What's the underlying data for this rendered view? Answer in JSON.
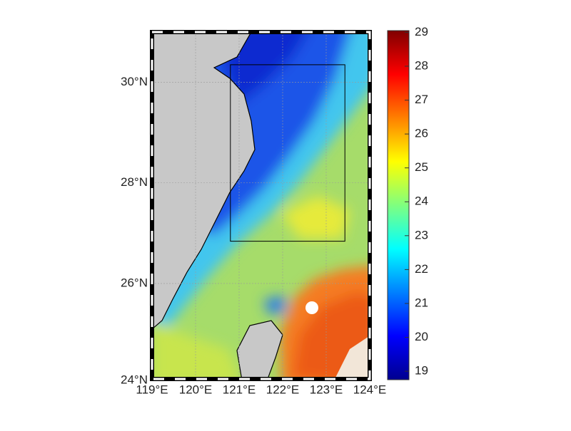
{
  "map": {
    "lonlim": [
      119,
      124
    ],
    "latlim": [
      24.1,
      31
    ],
    "lon_ticks": [
      {
        "value": 119,
        "label": "119°E"
      },
      {
        "value": 120,
        "label": "120°E"
      },
      {
        "value": 121,
        "label": "121°E"
      },
      {
        "value": 122,
        "label": "122°E"
      },
      {
        "value": 123,
        "label": "123°E"
      },
      {
        "value": 124,
        "label": "124°E"
      }
    ],
    "lat_ticks": [
      {
        "value": 24,
        "label": "24°N"
      },
      {
        "value": 26,
        "label": "26°N"
      },
      {
        "value": 28,
        "label": "28°N"
      },
      {
        "value": 30,
        "label": "30°N"
      }
    ],
    "box": {
      "lon": [
        120.8,
        123.43
      ],
      "lat": [
        26.84,
        30.35
      ]
    },
    "colorbar": {
      "lim": [
        18.75,
        29.05
      ],
      "ticks": [
        19,
        20,
        21,
        22,
        23,
        24,
        25,
        26,
        27,
        28,
        29
      ]
    }
  }
}
